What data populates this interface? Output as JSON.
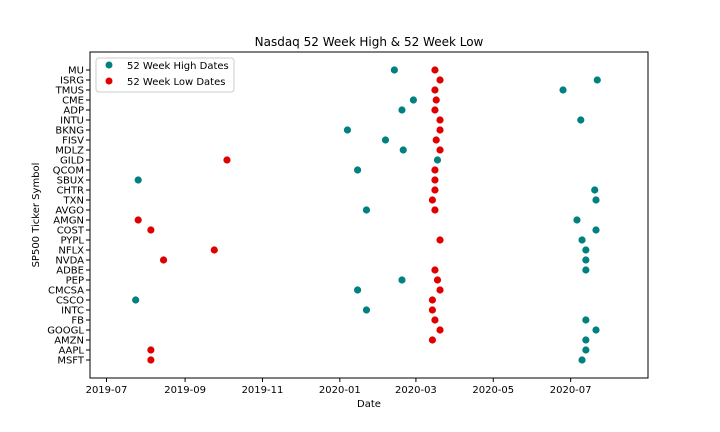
{
  "chart_data": {
    "type": "scatter",
    "title": "Nasdaq 52 Week High & 52 Week Low",
    "xlabel": "Date",
    "ylabel": "SP500 Ticker Symbol",
    "xlim": [
      "2019-06-18",
      "2020-08-31"
    ],
    "xticks": [
      {
        "date": "2019-07-01",
        "label": "2019-07"
      },
      {
        "date": "2019-09-01",
        "label": "2019-09"
      },
      {
        "date": "2019-11-01",
        "label": "2019-11"
      },
      {
        "date": "2020-01-01",
        "label": "2020-01"
      },
      {
        "date": "2020-03-01",
        "label": "2020-03"
      },
      {
        "date": "2020-05-01",
        "label": "2020-05"
      },
      {
        "date": "2020-07-01",
        "label": "2020-07"
      }
    ],
    "categories": [
      "MU",
      "ISRG",
      "TMUS",
      "CME",
      "ADP",
      "INTU",
      "BKNG",
      "FISV",
      "MDLZ",
      "GILD",
      "QCOM",
      "SBUX",
      "CHTR",
      "TXN",
      "AVGO",
      "AMGN",
      "COST",
      "PYPL",
      "NFLX",
      "NVDA",
      "ADBE",
      "PEP",
      "CMCSA",
      "CSCO",
      "INTC",
      "FB",
      "GOOGL",
      "AMZN",
      "AAPL",
      "MSFT"
    ],
    "legend_position": "upper-left",
    "grid": false,
    "series": [
      {
        "name": "52 Week High Dates",
        "color": "#008080",
        "points": [
          {
            "x": "2020-02-13",
            "y": "MU"
          },
          {
            "x": "2020-07-22",
            "y": "ISRG"
          },
          {
            "x": "2020-06-25",
            "y": "TMUS"
          },
          {
            "x": "2020-02-28",
            "y": "CME"
          },
          {
            "x": "2020-02-19",
            "y": "ADP"
          },
          {
            "x": "2020-07-09",
            "y": "INTU"
          },
          {
            "x": "2020-01-07",
            "y": "BKNG"
          },
          {
            "x": "2020-02-06",
            "y": "FISV"
          },
          {
            "x": "2020-02-20",
            "y": "MDLZ"
          },
          {
            "x": "2020-03-18",
            "y": "GILD"
          },
          {
            "x": "2020-01-15",
            "y": "QCOM"
          },
          {
            "x": "2019-07-26",
            "y": "SBUX"
          },
          {
            "x": "2020-07-20",
            "y": "CHTR"
          },
          {
            "x": "2020-07-21",
            "y": "TXN"
          },
          {
            "x": "2020-01-22",
            "y": "AVGO"
          },
          {
            "x": "2020-07-06",
            "y": "AMGN"
          },
          {
            "x": "2020-07-21",
            "y": "COST"
          },
          {
            "x": "2020-07-10",
            "y": "PYPL"
          },
          {
            "x": "2020-07-13",
            "y": "NFLX"
          },
          {
            "x": "2020-07-13",
            "y": "NVDA"
          },
          {
            "x": "2020-07-13",
            "y": "ADBE"
          },
          {
            "x": "2020-02-19",
            "y": "PEP"
          },
          {
            "x": "2020-01-15",
            "y": "CMCSA"
          },
          {
            "x": "2019-07-24",
            "y": "CSCO"
          },
          {
            "x": "2020-01-22",
            "y": "INTC"
          },
          {
            "x": "2020-07-13",
            "y": "FB"
          },
          {
            "x": "2020-07-21",
            "y": "GOOGL"
          },
          {
            "x": "2020-07-13",
            "y": "AMZN"
          },
          {
            "x": "2020-07-13",
            "y": "AAPL"
          },
          {
            "x": "2020-07-10",
            "y": "MSFT"
          }
        ]
      },
      {
        "name": "52 Week Low Dates",
        "color": "#e00000",
        "points": [
          {
            "x": "2020-03-16",
            "y": "MU"
          },
          {
            "x": "2020-03-20",
            "y": "ISRG"
          },
          {
            "x": "2020-03-16",
            "y": "TMUS"
          },
          {
            "x": "2020-03-17",
            "y": "CME"
          },
          {
            "x": "2020-03-16",
            "y": "ADP"
          },
          {
            "x": "2020-03-20",
            "y": "INTU"
          },
          {
            "x": "2020-03-20",
            "y": "BKNG"
          },
          {
            "x": "2020-03-17",
            "y": "FISV"
          },
          {
            "x": "2020-03-20",
            "y": "MDLZ"
          },
          {
            "x": "2019-10-04",
            "y": "GILD"
          },
          {
            "x": "2020-03-16",
            "y": "QCOM"
          },
          {
            "x": "2020-03-16",
            "y": "SBUX"
          },
          {
            "x": "2020-03-16",
            "y": "CHTR"
          },
          {
            "x": "2020-03-14",
            "y": "TXN"
          },
          {
            "x": "2020-03-16",
            "y": "AVGO"
          },
          {
            "x": "2019-07-26",
            "y": "AMGN"
          },
          {
            "x": "2019-08-05",
            "y": "COST"
          },
          {
            "x": "2020-03-20",
            "y": "PYPL"
          },
          {
            "x": "2019-09-24",
            "y": "NFLX"
          },
          {
            "x": "2019-08-15",
            "y": "NVDA"
          },
          {
            "x": "2020-03-16",
            "y": "ADBE"
          },
          {
            "x": "2020-03-18",
            "y": "PEP"
          },
          {
            "x": "2020-03-20",
            "y": "CMCSA"
          },
          {
            "x": "2020-03-14",
            "y": "CSCO"
          },
          {
            "x": "2020-03-14",
            "y": "INTC"
          },
          {
            "x": "2020-03-16",
            "y": "FB"
          },
          {
            "x": "2020-03-20",
            "y": "GOOGL"
          },
          {
            "x": "2020-03-14",
            "y": "AMZN"
          },
          {
            "x": "2019-08-05",
            "y": "AAPL"
          },
          {
            "x": "2019-08-05",
            "y": "MSFT"
          }
        ]
      }
    ]
  }
}
